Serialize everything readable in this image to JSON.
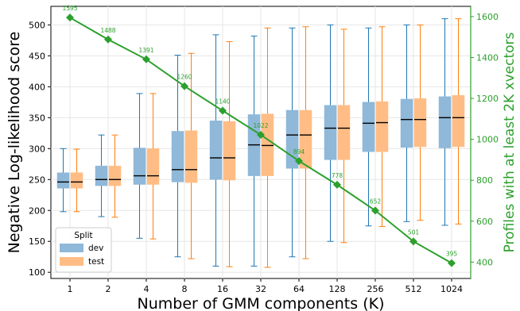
{
  "chart_data": {
    "type": "box",
    "xlabel": "Number of GMM components (K)",
    "ylabel": "Negative Log-likelihood score",
    "y2label": "Profiles with at least 2K xvectors",
    "categories": [
      "1",
      "2",
      "4",
      "8",
      "16",
      "32",
      "64",
      "128",
      "256",
      "512",
      "1024"
    ],
    "ylim": [
      90,
      530
    ],
    "y2lim": [
      320,
      1650
    ],
    "yticks": [
      100,
      150,
      200,
      250,
      300,
      350,
      400,
      450,
      500
    ],
    "y2ticks": [
      400,
      600,
      800,
      1000,
      1200,
      1400,
      1600
    ],
    "grid": true,
    "legend": {
      "title": "Split",
      "placement": "lower-left",
      "entries": [
        "dev",
        "test"
      ]
    },
    "colors": {
      "dev": "#1f77b4",
      "test": "#ff7f0e",
      "profiles": "#2ca02c"
    },
    "series": [
      {
        "name": "dev",
        "boxes": [
          {
            "whislo": 198,
            "q1": 236,
            "med": 246,
            "q3": 261,
            "whishi": 300
          },
          {
            "whislo": 190,
            "q1": 240,
            "med": 250,
            "q3": 272,
            "whishi": 322
          },
          {
            "whislo": 155,
            "q1": 242,
            "med": 256,
            "q3": 301,
            "whishi": 389
          },
          {
            "whislo": 125,
            "q1": 246,
            "med": 266,
            "q3": 328,
            "whishi": 451
          },
          {
            "whislo": 110,
            "q1": 250,
            "med": 285,
            "q3": 345,
            "whishi": 484
          },
          {
            "whislo": 110,
            "q1": 256,
            "med": 306,
            "q3": 355,
            "whishi": 482
          },
          {
            "whislo": 125,
            "q1": 268,
            "med": 322,
            "q3": 362,
            "whishi": 495
          },
          {
            "whislo": 150,
            "q1": 282,
            "med": 333,
            "q3": 370,
            "whishi": 500
          },
          {
            "whislo": 175,
            "q1": 295,
            "med": 341,
            "q3": 375,
            "whishi": 495
          },
          {
            "whislo": 182,
            "q1": 302,
            "med": 347,
            "q3": 380,
            "whishi": 500
          },
          {
            "whislo": 176,
            "q1": 301,
            "med": 350,
            "q3": 384,
            "whishi": 510
          }
        ]
      },
      {
        "name": "test",
        "boxes": [
          {
            "whislo": 198,
            "q1": 236,
            "med": 246,
            "q3": 261,
            "whishi": 299
          },
          {
            "whislo": 189,
            "q1": 240,
            "med": 250,
            "q3": 272,
            "whishi": 322
          },
          {
            "whislo": 154,
            "q1": 242,
            "med": 256,
            "q3": 300,
            "whishi": 389
          },
          {
            "whislo": 122,
            "q1": 245,
            "med": 266,
            "q3": 329,
            "whishi": 454
          },
          {
            "whislo": 109,
            "q1": 249,
            "med": 285,
            "q3": 344,
            "whishi": 473
          },
          {
            "whislo": 108,
            "q1": 256,
            "med": 305,
            "q3": 356,
            "whishi": 495
          },
          {
            "whislo": 122,
            "q1": 268,
            "med": 322,
            "q3": 362,
            "whishi": 497
          },
          {
            "whislo": 148,
            "q1": 282,
            "med": 333,
            "q3": 370,
            "whishi": 493
          },
          {
            "whislo": 174,
            "q1": 295,
            "med": 342,
            "q3": 376,
            "whishi": 497
          },
          {
            "whislo": 184,
            "q1": 303,
            "med": 347,
            "q3": 381,
            "whishi": 500
          },
          {
            "whislo": 178,
            "q1": 303,
            "med": 350,
            "q3": 386,
            "whishi": 510
          }
        ]
      }
    ],
    "line": {
      "axis": "right",
      "values": [
        1595,
        1488,
        1391,
        1260,
        1140,
        1022,
        894,
        778,
        652,
        501,
        395
      ],
      "labels": [
        "1595",
        "1488",
        "1391",
        "1260",
        "1140",
        "1022",
        "894",
        "778",
        "652",
        "501",
        "395"
      ]
    }
  }
}
